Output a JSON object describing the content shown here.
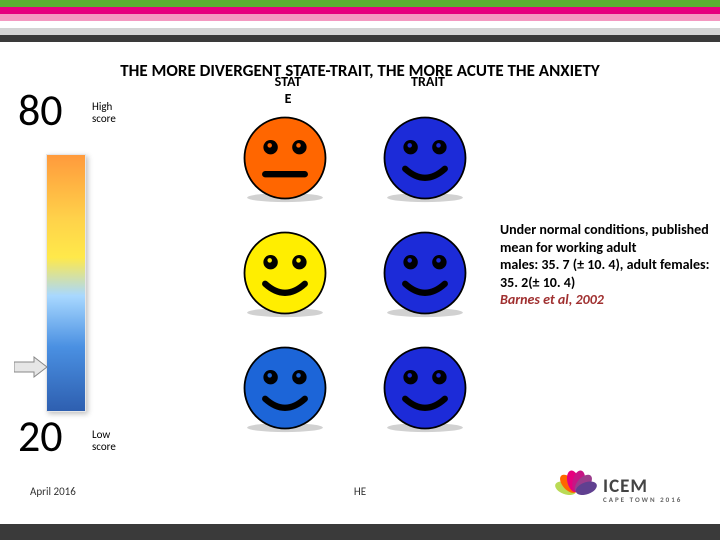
{
  "stripes": [
    "#5ab031",
    "#e6007e",
    "#f49ac1",
    "#ffffff",
    "#d4d4d4",
    "#3a3a3a"
  ],
  "title": "THE MORE DIVERGENT STATE-TRAIT, THE MORE ACUTE THE ANXIETY",
  "high_num": "80",
  "low_num": "20",
  "high_label": "High\nscore",
  "low_label": "Low\nscore",
  "col1": "STAT\nE",
  "col2": "TRAIT",
  "faces": {
    "c11": {
      "fill": "#ff6600",
      "mouth": "flat"
    },
    "c12": {
      "fill": "#1c2bd8",
      "mouth": "smile"
    },
    "c21": {
      "fill": "#ffee00",
      "mouth": "smile"
    },
    "c22": {
      "fill": "#1c2bd8",
      "mouth": "smile"
    },
    "c31": {
      "fill": "#1c65d8",
      "mouth": "smile"
    },
    "c32": {
      "fill": "#1c2bd8",
      "mouth": "smile"
    }
  },
  "caption_main": "Under normal conditions, published mean for working adult\nmales: 35. 7 (± 10. 4), adult females: 35. 2(± 10. 4)",
  "caption_ref": "Barnes et al, 2002",
  "footer_date": "April 2016",
  "footer_center": "HE",
  "logo_big": "ICEM",
  "logo_sm": "CAPE TOWN 2016",
  "petal_colors": [
    "#bada55",
    "#ff6600",
    "#e6007e",
    "#c71585",
    "#9b3d8c",
    "#604090"
  ]
}
